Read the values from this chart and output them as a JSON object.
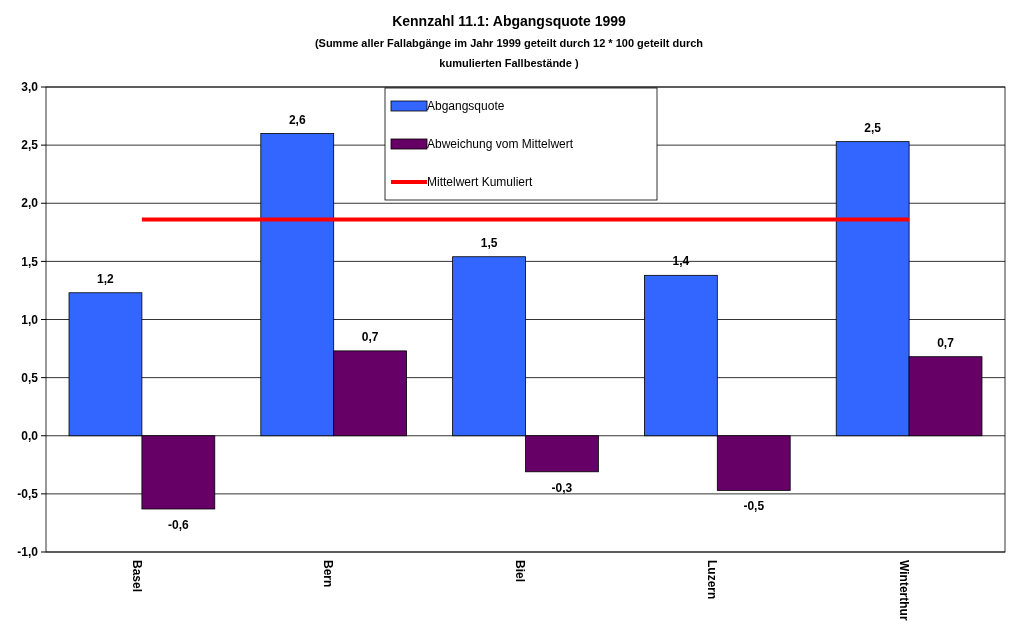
{
  "chart_data": {
    "type": "bar",
    "title": "Kennzahl 11.1: Abgangsquote 1999",
    "subtitle": "(Summe aller Fallabgänge im Jahr 1999 geteilt durch 12 * 100 geteilt durch kumulierten Fallbestände )",
    "categories": [
      "Basel",
      "Bern",
      "Biel",
      "Luzern",
      "Winterthur"
    ],
    "series": [
      {
        "name": "Abgangsquote",
        "color": "#3366ff",
        "values": [
          1.23,
          2.6,
          1.54,
          1.38,
          2.53
        ],
        "value_labels": [
          "1,2",
          "2,6",
          "1,5",
          "1,4",
          "2,5"
        ]
      },
      {
        "name": "Abweichung vom Mittelwert",
        "color": "#660066",
        "values": [
          -0.63,
          0.73,
          -0.31,
          -0.47,
          0.68
        ],
        "value_labels": [
          "-0,6",
          "0,7",
          "-0,3",
          "-0,5",
          "0,7"
        ]
      },
      {
        "name": "Mittelwert Kumuliert",
        "type": "line",
        "color": "#ff0000",
        "values": [
          1.86,
          1.86,
          1.86,
          1.86,
          1.86
        ]
      }
    ],
    "ylim": [
      -1,
      3
    ],
    "yticks": [
      {
        "value": -1,
        "label": "-1,0"
      },
      {
        "value": -0.5,
        "label": "-0,5"
      },
      {
        "value": 0,
        "label": "0,0"
      },
      {
        "value": 0.5,
        "label": "0,5"
      },
      {
        "value": 1,
        "label": "1,0"
      },
      {
        "value": 1.5,
        "label": "1,5"
      },
      {
        "value": 2,
        "label": "2,0"
      },
      {
        "value": 2.5,
        "label": "2,5"
      },
      {
        "value": 3,
        "label": "3,0"
      }
    ],
    "grid": "y",
    "legend": "top",
    "marker": "none"
  }
}
